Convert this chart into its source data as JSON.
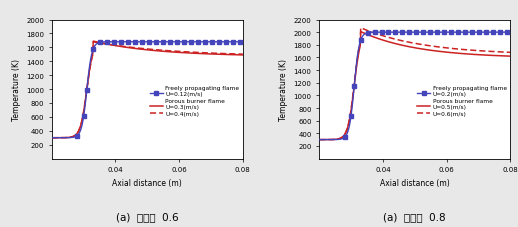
{
  "chart1": {
    "title": "(a)  당량비  0.6",
    "ylim": [
      0,
      2000
    ],
    "yticks": [
      200,
      400,
      600,
      800,
      1000,
      1200,
      1400,
      1600,
      1800,
      2000
    ],
    "xlim": [
      0.02,
      0.08
    ],
    "xticks": [
      0.04,
      0.06,
      0.08
    ],
    "xlabel": "Axial distance (m)",
    "ylabel": "Temperature (K)",
    "freely_label": "Freely propagating flame",
    "freely_u_label": "U=0.12(m/s)",
    "porous_label": "Porous burner flame",
    "porous_u1_label": "U=0.3(m/s)",
    "porous_u2_label": "U=0.4(m/s)",
    "freely_color": "#4444bb",
    "porous_color": "#cc2222",
    "flame_front": 0.031,
    "freely_T_pre": 300,
    "freely_T_post": 1680,
    "porous_T_pre": 300,
    "porous_T_peak_u1": 1690,
    "porous_T_post_u1": 1470,
    "porous_T_peak_u2": 1680,
    "porous_T_post_u2": 1470,
    "porous_decay_u1": 0.02,
    "porous_decay_u2": 0.025
  },
  "chart2": {
    "title": "(a)  당량비  0.8",
    "ylim": [
      0,
      2200
    ],
    "yticks": [
      200,
      400,
      600,
      800,
      1000,
      1200,
      1400,
      1600,
      1800,
      2000,
      2200
    ],
    "xlim": [
      0.02,
      0.08
    ],
    "xticks": [
      0.04,
      0.06,
      0.08
    ],
    "xlabel": "Axial distance (m)",
    "ylabel": "Temperature (K)",
    "freely_label": "Freely propagating flame",
    "freely_u_label": "U=0.2(m/s)",
    "porous_label": "Porous burner flame",
    "porous_u1_label": "U=0.5(m/s)",
    "porous_u2_label": "U=0.6(m/s)",
    "freely_color": "#4444bb",
    "porous_color": "#cc2222",
    "flame_front": 0.031,
    "freely_T_pre": 300,
    "freely_T_post": 2000,
    "porous_T_pre": 300,
    "porous_T_peak_u1": 2010,
    "porous_T_post_u1": 1590,
    "porous_T_peak_u2": 2070,
    "porous_T_post_u2": 1640,
    "porous_decay_u1": 0.018,
    "porous_decay_u2": 0.02
  },
  "background": "#e8e8e8",
  "plot_bg": "#ffffff"
}
